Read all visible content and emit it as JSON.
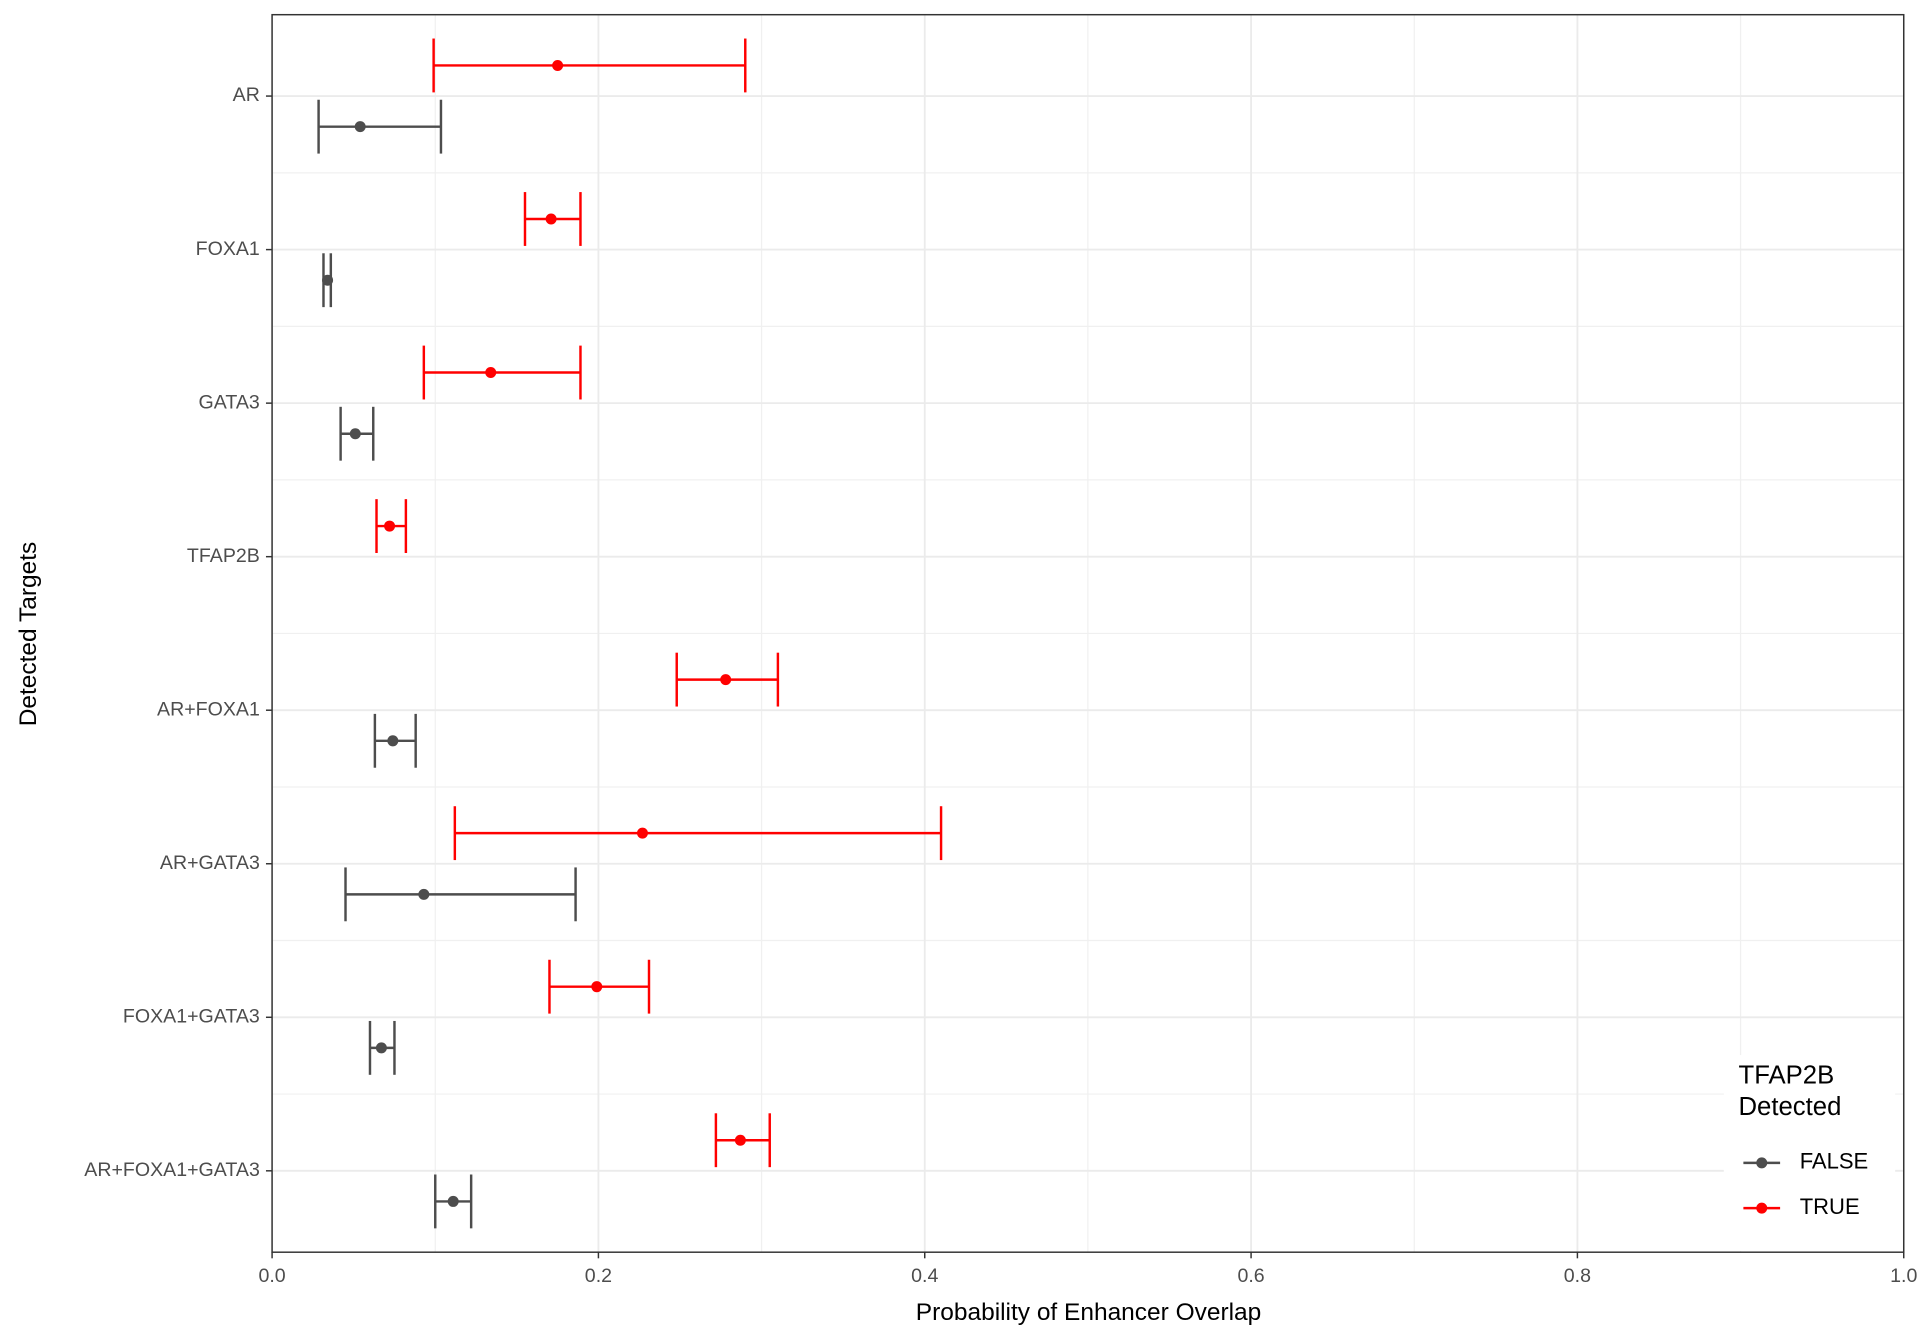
{
  "chart_data": {
    "type": "pointrange",
    "x_label": "Probability of Enhancer Overlap",
    "y_label": "Detected Targets",
    "legend_title": "TFAP2B Detected",
    "legend_position": "bottom-right",
    "grid": true,
    "categories": [
      "AR",
      "FOXA1",
      "GATA3",
      "TFAP2B",
      "AR+FOXA1",
      "AR+GATA3",
      "FOXA1+GATA3",
      "AR+FOXA1+GATA3"
    ],
    "xlim": [
      0,
      1
    ],
    "xticks": [
      {
        "value": 0,
        "label": "0.0"
      },
      0.2,
      0.4,
      0.6,
      0.8,
      {
        "value": 1,
        "label": "1.0"
      }
    ],
    "series": [
      {
        "name": "FALSE",
        "color": "#4d4d4d",
        "values": [
          0.054,
          0.034,
          0.051,
          null,
          0.074,
          0.093,
          0.067,
          0.111
        ],
        "lower": [
          0.0285,
          0.0315,
          0.042,
          null,
          0.063,
          0.045,
          0.06,
          0.1
        ],
        "upper": [
          0.1035,
          0.036,
          0.062,
          null,
          0.088,
          0.186,
          0.075,
          0.122
        ]
      },
      {
        "name": "TRUE",
        "color": "#ff0000",
        "values": [
          0.175,
          0.171,
          0.134,
          0.072,
          0.278,
          0.227,
          0.199,
          0.287
        ],
        "lower": [
          0.099,
          0.155,
          0.093,
          0.064,
          0.248,
          0.112,
          0.17,
          0.272
        ],
        "upper": [
          0.29,
          0.189,
          0.189,
          0.082,
          0.31,
          0.41,
          0.231,
          0.305
        ]
      }
    ]
  }
}
